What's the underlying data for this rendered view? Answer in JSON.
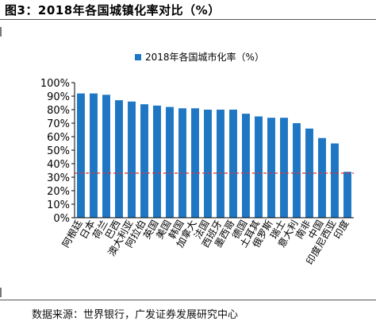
{
  "figure": {
    "title": "图3：2018年各国城镇化率对比（%）",
    "source": "数据来源：世界银行，广发证券发展研究中心"
  },
  "chart_data": {
    "type": "bar",
    "legend": {
      "label": "2018年各国城市化率（%）",
      "placement": "top-center"
    },
    "categories": [
      "阿根廷",
      "日本",
      "荷兰",
      "巴西",
      "澳大利亚",
      "阿拉伯",
      "英国",
      "美国",
      "韩国",
      "加拿大",
      "法国",
      "西班牙",
      "墨西哥",
      "德国",
      "土耳其",
      "俄罗斯",
      "瑞士",
      "意大利",
      "南非",
      "中国",
      "印度尼西亚",
      "印度"
    ],
    "series": [
      {
        "name": "2018年各国城市化率（%）",
        "values": [
          92,
          92,
          91,
          87,
          86,
          84,
          83,
          82,
          81,
          81,
          80,
          80,
          80,
          77,
          75,
          74,
          74,
          70,
          66,
          59,
          55,
          34
        ]
      }
    ],
    "reference_line": {
      "value": 33,
      "style": "dashed",
      "color": "#e03030"
    },
    "ylim": [
      0,
      100
    ],
    "yticks": [
      "0%",
      "10%",
      "20%",
      "30%",
      "40%",
      "50%",
      "60%",
      "70%",
      "80%",
      "90%",
      "100%"
    ],
    "bar_color": "#1f77c4",
    "grid": false
  }
}
